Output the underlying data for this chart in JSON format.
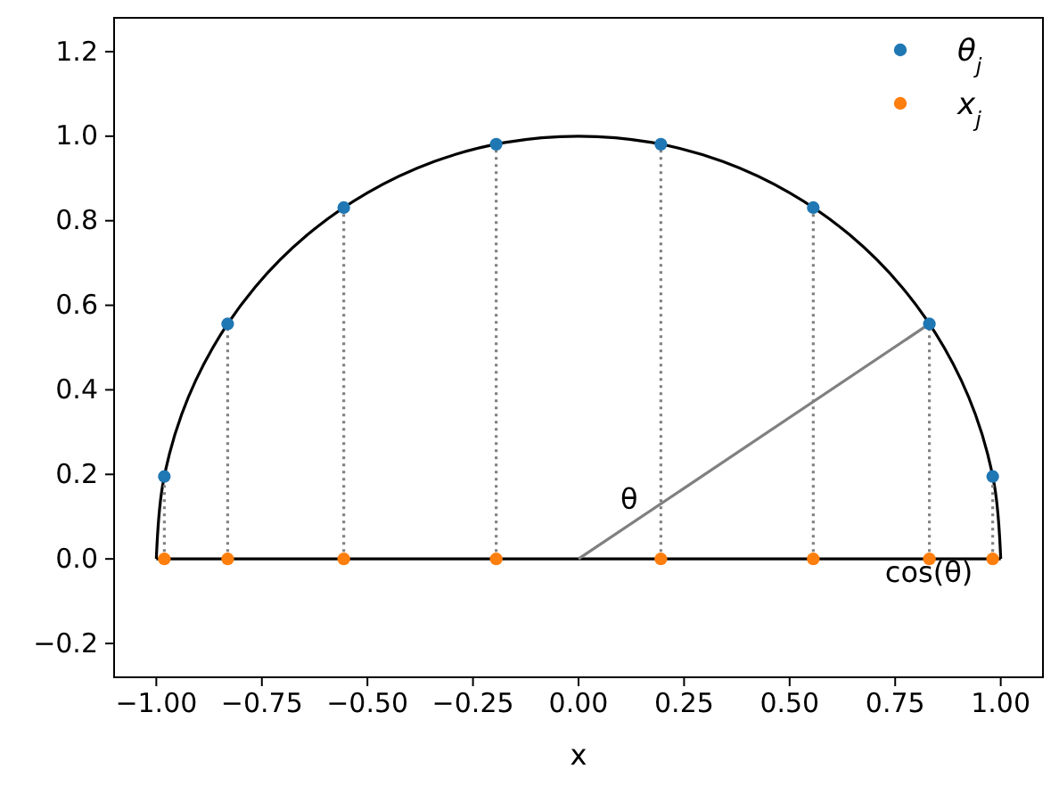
{
  "chart_data": {
    "type": "scatter",
    "xlabel": "x",
    "xlim": [
      -1.1,
      1.1
    ],
    "ylim": [
      -0.28,
      1.28
    ],
    "xticks": [
      {
        "value": -1,
        "label": "−1.00"
      },
      {
        "value": -0.75,
        "label": "−0.75"
      },
      {
        "value": -0.5,
        "label": "−0.50"
      },
      {
        "value": -0.25,
        "label": "−0.25"
      },
      {
        "value": 0,
        "label": "0.00"
      },
      {
        "value": 0.25,
        "label": "0.25"
      },
      {
        "value": 0.5,
        "label": "0.50"
      },
      {
        "value": 0.75,
        "label": "0.75"
      },
      {
        "value": 1,
        "label": "1.00"
      }
    ],
    "yticks": [
      {
        "value": -0.2,
        "label": "−0.2"
      },
      {
        "value": 0,
        "label": "0.0"
      },
      {
        "value": 0.2,
        "label": "0.2"
      },
      {
        "value": 0.4,
        "label": "0.4"
      },
      {
        "value": 0.6,
        "label": "0.6"
      },
      {
        "value": 0.8,
        "label": "0.8"
      },
      {
        "value": 1,
        "label": "1.0"
      },
      {
        "value": 1.2,
        "label": "1.2"
      }
    ],
    "grid": false,
    "legend": "top right",
    "annotations": [
      "θ",
      "cos(θ)"
    ],
    "series": [
      {
        "type": "line",
        "color": "#000000",
        "line_style": "solid",
        "x": [
          -1,
          -0.985,
          -0.94,
          -0.866,
          -0.766,
          -0.643,
          -0.5,
          -0.342,
          -0.174,
          0,
          0.174,
          0.342,
          0.5,
          0.643,
          0.766,
          0.866,
          0.94,
          0.985,
          1
        ],
        "values": [
          0,
          0.174,
          0.342,
          0.5,
          0.643,
          0.766,
          0.866,
          0.94,
          0.985,
          1,
          0.985,
          0.94,
          0.866,
          0.766,
          0.643,
          0.5,
          0.342,
          0.174,
          0
        ]
      },
      {
        "type": "line",
        "color": "#000000",
        "line_style": "solid",
        "x": [
          -1,
          1
        ],
        "values": [
          0,
          0
        ]
      },
      {
        "type": "line",
        "color": "#808080",
        "line_style": "solid",
        "x": [
          0,
          0.831
        ],
        "values": [
          0,
          0.556
        ]
      },
      {
        "type": "line",
        "color": "#808080",
        "line_style": "dotted",
        "x": [
          -0.981,
          -0.981
        ],
        "values": [
          0,
          0.195
        ]
      },
      {
        "type": "line",
        "color": "#808080",
        "line_style": "dotted",
        "x": [
          -0.831,
          -0.831
        ],
        "values": [
          0,
          0.556
        ]
      },
      {
        "type": "line",
        "color": "#808080",
        "line_style": "dotted",
        "x": [
          -0.556,
          -0.556
        ],
        "values": [
          0,
          0.831
        ]
      },
      {
        "type": "line",
        "color": "#808080",
        "line_style": "dotted",
        "x": [
          -0.195,
          -0.195
        ],
        "values": [
          0,
          0.981
        ]
      },
      {
        "type": "line",
        "color": "#808080",
        "line_style": "dotted",
        "x": [
          0.195,
          0.195
        ],
        "values": [
          0,
          0.981
        ]
      },
      {
        "type": "line",
        "color": "#808080",
        "line_style": "dotted",
        "x": [
          0.556,
          0.556
        ],
        "values": [
          0,
          0.831
        ]
      },
      {
        "type": "line",
        "color": "#808080",
        "line_style": "dotted",
        "x": [
          0.831,
          0.831
        ],
        "values": [
          0,
          0.556
        ]
      },
      {
        "type": "line",
        "color": "#808080",
        "line_style": "dotted",
        "x": [
          0.981,
          0.981
        ],
        "values": [
          0,
          0.195
        ]
      },
      {
        "name": "θ$_{j}$",
        "color": "#1f77b4",
        "marker": "circle",
        "x": [
          -0.981,
          -0.831,
          -0.556,
          -0.195,
          0.195,
          0.556,
          0.831,
          0.981
        ],
        "values": [
          0.195,
          0.556,
          0.831,
          0.981,
          0.981,
          0.831,
          0.556,
          0.195
        ]
      },
      {
        "name": "x$_{j}$",
        "color": "#ff7f0e",
        "marker": "circle",
        "x": [
          -0.981,
          -0.831,
          -0.556,
          -0.195,
          0.195,
          0.556,
          0.831,
          0.981
        ],
        "values": [
          0,
          0,
          0,
          0,
          0,
          0,
          0,
          0
        ]
      }
    ]
  }
}
